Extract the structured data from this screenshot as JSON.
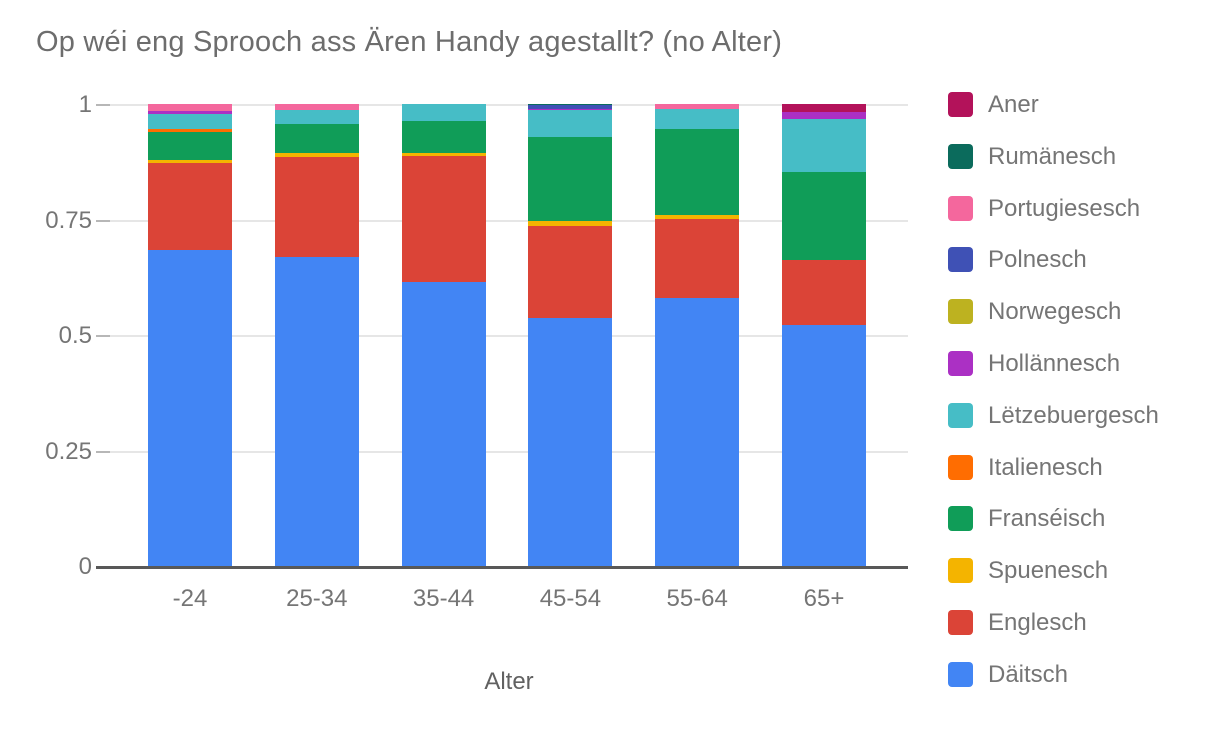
{
  "title": "Op wéi eng Sprooch ass Ären Handy agestallt? (no Alter)",
  "chart_data": {
    "type": "bar",
    "stacked": true,
    "normalized": true,
    "title": "Op wéi eng Sprooch ass Ären Handy agestallt? (no Alter)",
    "xlabel": "Alter",
    "ylabel": "",
    "ylim": [
      0,
      1
    ],
    "grid": true,
    "legend_position": "right",
    "yticks": [
      0,
      0.25,
      0.5,
      0.75,
      1
    ],
    "ytick_labels": [
      "0",
      "0.25",
      "0.5",
      "0.75",
      "1"
    ],
    "categories": [
      "-24",
      "25-34",
      "35-44",
      "45-54",
      "55-64",
      "65+"
    ],
    "legend_top_to_bottom": [
      "Aner",
      "Rumänesch",
      "Portugiesesch",
      "Polnesch",
      "Norwegesch",
      "Hollännesch",
      "Lëtzebuergesch",
      "Italienesch",
      "Franséisch",
      "Spuenesch",
      "Englesch",
      "Däitsch"
    ],
    "series": [
      {
        "name": "Däitsch",
        "color": "#4285F4",
        "values": [
          0.685,
          0.668,
          0.615,
          0.537,
          0.58,
          0.522
        ]
      },
      {
        "name": "Englesch",
        "color": "#DB4437",
        "values": [
          0.187,
          0.218,
          0.272,
          0.2,
          0.172,
          0.14
        ]
      },
      {
        "name": "Spuenesch",
        "color": "#F4B400",
        "values": [
          0.006,
          0.008,
          0.008,
          0.009,
          0.008,
          0
        ]
      },
      {
        "name": "Franséisch",
        "color": "#109D58",
        "values": [
          0.062,
          0.062,
          0.068,
          0.182,
          0.185,
          0.19
        ]
      },
      {
        "name": "Italienesch",
        "color": "#FF6D01",
        "values": [
          0.006,
          0,
          0,
          0,
          0,
          0
        ]
      },
      {
        "name": "Lëtzebuergesch",
        "color": "#46BDC6",
        "values": [
          0.032,
          0.032,
          0.037,
          0.058,
          0.045,
          0.115
        ]
      },
      {
        "name": "Hollännesch",
        "color": "#AB30C4",
        "values": [
          0.007,
          0,
          0,
          0.003,
          0,
          0.016
        ]
      },
      {
        "name": "Norwegesch",
        "color": "#BDB220",
        "values": [
          0,
          0,
          0,
          0,
          0,
          0
        ]
      },
      {
        "name": "Polnesch",
        "color": "#3F51B5",
        "values": [
          0,
          0,
          0,
          0.008,
          0,
          0
        ]
      },
      {
        "name": "Portugiesesch",
        "color": "#F4679D",
        "values": [
          0.015,
          0.012,
          0,
          0,
          0.01,
          0
        ]
      },
      {
        "name": "Rumänesch",
        "color": "#0B6B5C",
        "values": [
          0,
          0,
          0,
          0.003,
          0,
          0
        ]
      },
      {
        "name": "Aner",
        "color": "#B3125A",
        "values": [
          0,
          0,
          0,
          0,
          0,
          0.017
        ]
      }
    ]
  }
}
